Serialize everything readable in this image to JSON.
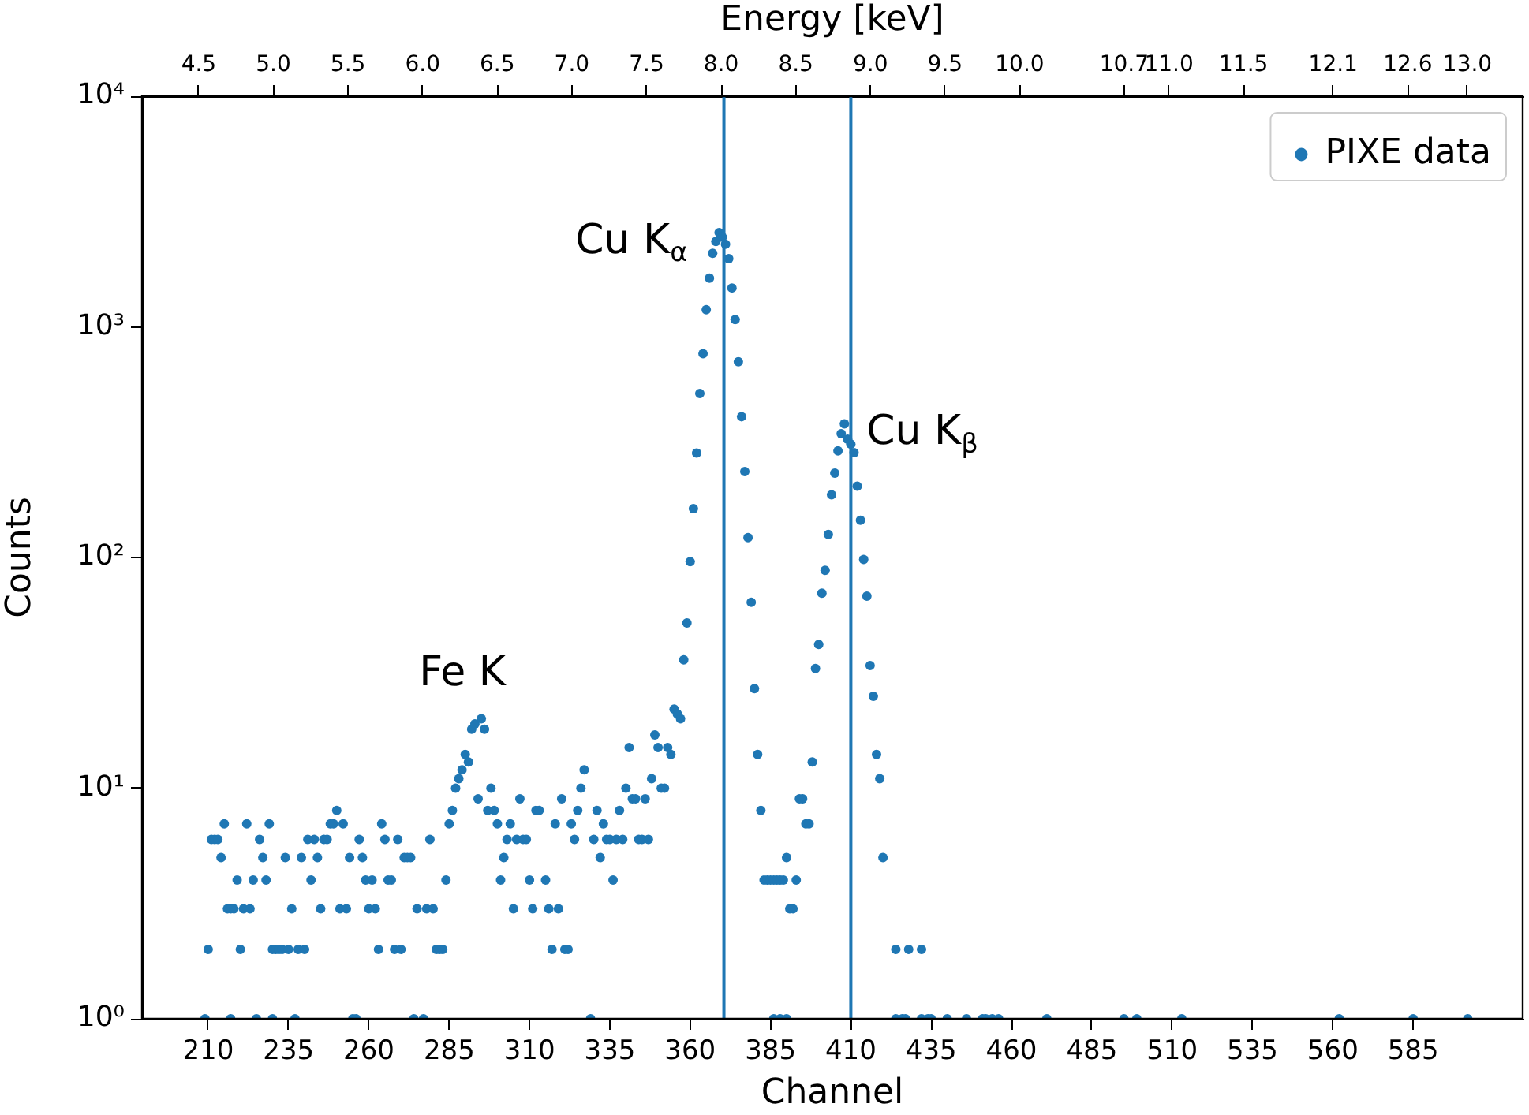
{
  "chart_data": {
    "type": "scatter",
    "xlabel": "Channel",
    "ylabel": "Counts",
    "x2label": "Energy [keV]",
    "xlim": [
      189.4,
      619.1
    ],
    "xticks": [
      210,
      235,
      260,
      285,
      310,
      335,
      360,
      385,
      410,
      435,
      460,
      485,
      510,
      535,
      560,
      585
    ],
    "ylim": [
      1,
      10000
    ],
    "yticks": [
      {
        "value": 1,
        "label": "10⁰"
      },
      {
        "value": 10,
        "label": "10¹"
      },
      {
        "value": 100,
        "label": "10²"
      },
      {
        "value": 1000,
        "label": "10³"
      },
      {
        "value": 10000,
        "label": "10⁴"
      }
    ],
    "log": "y",
    "x2lim": [
      4.12,
      13.37
    ],
    "x2ticks": [
      4.5,
      {
        "value": 5,
        "label": "5.0"
      },
      5.5,
      {
        "value": 6,
        "label": "6.0"
      },
      6.5,
      {
        "value": 7,
        "label": "7.0"
      },
      7.5,
      {
        "value": 8,
        "label": "8.0"
      },
      8.5,
      {
        "value": 9,
        "label": "9.0"
      },
      9.5,
      {
        "value": 10,
        "label": "10.0"
      },
      10.7,
      {
        "value": 11,
        "label": "11.0"
      },
      11.5,
      12.1,
      12.6,
      {
        "value": 13,
        "label": "13.0"
      }
    ],
    "grid": false,
    "legend": "top right",
    "marker": "circle",
    "ref_lines": [
      {
        "axis": "x",
        "value": 370.5,
        "color": "#1f77b4"
      },
      {
        "axis": "x",
        "value": 410,
        "color": "#1f77b4"
      }
    ],
    "annotations": [
      {
        "text": "Fe K",
        "x": 295,
        "y": 20
      },
      {
        "text": "Cu K$_{α}$",
        "x": 369,
        "y": 2560
      },
      {
        "text": "Cu K$_{β}$",
        "x": 408,
        "y": 380
      }
    ],
    "series": [
      {
        "name": "PIXE data",
        "color": "#1f77b4",
        "x": [
          209,
          210,
          211,
          212,
          213,
          214,
          215,
          216,
          217,
          217,
          218,
          219,
          220,
          221,
          222,
          223,
          224,
          225,
          226,
          227,
          228,
          229,
          230,
          230,
          231,
          232,
          233,
          234,
          235,
          236,
          237,
          238,
          239,
          240,
          241,
          242,
          243,
          244,
          245,
          246,
          247,
          248,
          249,
          250,
          251,
          252,
          253,
          254,
          255,
          256,
          257,
          258,
          259,
          260,
          261,
          262,
          263,
          264,
          265,
          266,
          267,
          268,
          269,
          270,
          271,
          272,
          273,
          274,
          275,
          277,
          278,
          279,
          280,
          281,
          282,
          283,
          284,
          285,
          286,
          287,
          288,
          289,
          290,
          291,
          292,
          293,
          294,
          295,
          296,
          297,
          298,
          299,
          300,
          301,
          302,
          303,
          304,
          305,
          306,
          307,
          308,
          309,
          310,
          311,
          312,
          313,
          315,
          316,
          317,
          318,
          319,
          320,
          321,
          322,
          323,
          324,
          325,
          326,
          327,
          329,
          330,
          331,
          332,
          333,
          334,
          335,
          336,
          337,
          338,
          339,
          340,
          341,
          342,
          343,
          344,
          345,
          346,
          347,
          348,
          349,
          350,
          351,
          352,
          353,
          354,
          355,
          356,
          357,
          358,
          359,
          360,
          361,
          362,
          363,
          364,
          365,
          366,
          367,
          368,
          369,
          370,
          371,
          372,
          373,
          374,
          375,
          376,
          377,
          378,
          379,
          380,
          381,
          382,
          383,
          384,
          385,
          386,
          386,
          387,
          388,
          388,
          389,
          390,
          390,
          391,
          392,
          393,
          394,
          395,
          396,
          397,
          398,
          399,
          400,
          401,
          402,
          403,
          404,
          405,
          406,
          407,
          408,
          409,
          410,
          411,
          412,
          413,
          414,
          415,
          416,
          417,
          418,
          419,
          420,
          424,
          424,
          426,
          427,
          428,
          432,
          432,
          434,
          435,
          440,
          446,
          451,
          452,
          454,
          456,
          471,
          495,
          499,
          513,
          562,
          585,
          602
        ],
        "values": [
          1,
          2,
          6,
          6,
          6,
          5,
          7,
          3,
          3,
          1,
          3,
          4,
          2,
          3,
          7,
          3,
          4,
          1,
          6,
          5,
          4,
          7,
          2,
          1,
          2,
          2,
          2,
          5,
          2,
          3,
          1,
          2,
          5,
          2,
          6,
          4,
          6,
          5,
          3,
          6,
          6,
          7,
          7,
          8,
          3,
          7,
          3,
          5,
          1,
          1,
          6,
          5,
          4,
          3,
          4,
          3,
          2,
          7,
          6,
          4,
          4,
          2,
          6,
          2,
          5,
          5,
          5,
          1,
          3,
          1,
          3,
          6,
          3,
          2,
          2,
          2,
          4,
          7,
          8,
          10,
          11,
          12,
          14,
          13,
          18,
          19,
          9,
          20,
          18,
          8,
          10,
          8,
          7,
          4,
          5,
          6,
          7,
          3,
          6,
          9,
          6,
          6,
          4,
          3,
          8,
          8,
          4,
          3,
          2,
          7,
          3,
          9,
          2,
          2,
          7,
          6,
          8,
          10,
          12,
          1,
          6,
          8,
          5,
          7,
          6,
          6,
          4,
          6,
          8,
          6,
          10,
          15,
          9,
          9,
          6,
          6,
          9,
          6,
          11,
          17,
          15,
          10,
          10,
          15,
          14,
          22,
          21,
          20,
          36,
          52,
          96,
          163,
          284,
          514,
          765,
          1186,
          1626,
          2085,
          2344,
          2560,
          2450,
          2280,
          1975,
          1475,
          1075,
          706,
          408,
          236,
          122,
          64,
          27,
          14,
          8,
          4,
          4,
          4,
          4,
          1,
          4,
          4,
          1,
          4,
          1,
          5,
          3,
          3,
          4,
          9,
          9,
          7,
          7,
          13,
          33,
          42,
          70,
          88,
          126,
          187,
          232,
          290,
          344,
          380,
          326,
          310,
          285,
          204,
          145,
          98,
          68,
          34,
          25,
          14,
          11,
          5,
          2,
          1,
          1,
          1,
          2,
          2,
          1,
          1,
          1,
          1,
          1,
          1,
          1,
          1,
          1,
          1,
          1,
          1,
          1,
          1,
          1,
          1
        ]
      }
    ]
  }
}
